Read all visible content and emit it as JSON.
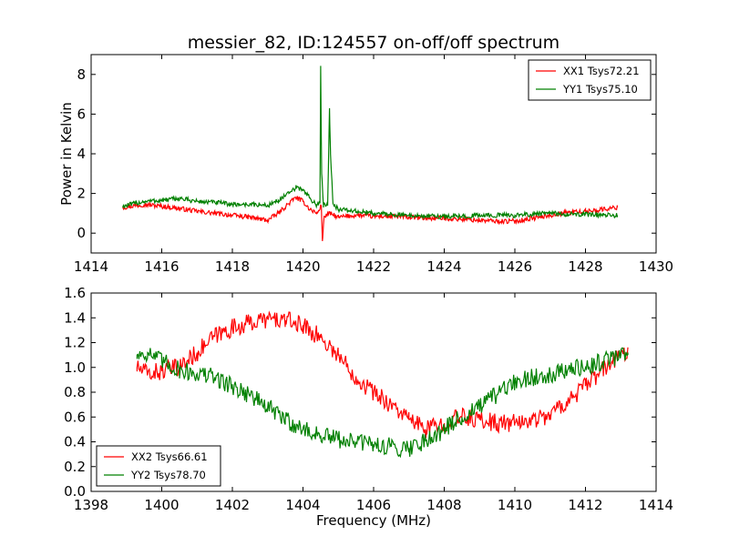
{
  "figure": {
    "title": "messier_82, ID:124557 on-off/off spectrum"
  },
  "chart_data": [
    {
      "type": "line",
      "title": "messier_82, ID:124557 on-off/off spectrum",
      "xlabel": "",
      "ylabel": "Power in Kelvin",
      "xlim": [
        1414,
        1430
      ],
      "ylim": [
        -1,
        9
      ],
      "xticks": [
        "1414",
        "1416",
        "1418",
        "1420",
        "1422",
        "1424",
        "1426",
        "1428",
        "1430"
      ],
      "yticks": [
        "0",
        "2",
        "4",
        "6",
        "8"
      ],
      "grid": false,
      "legend_position": "top-right",
      "colors": {
        "XX1 Tsys72.21": "#ff0000",
        "YY1 Tsys75.10": "#008000"
      },
      "series": [
        {
          "name": "XX1 Tsys72.21",
          "x": [
            1414.9,
            1415.5,
            1416.0,
            1416.5,
            1417.0,
            1417.5,
            1418.0,
            1418.5,
            1419.0,
            1419.3,
            1419.6,
            1419.8,
            1420.0,
            1420.2,
            1420.4,
            1420.52,
            1420.55,
            1420.6,
            1420.75,
            1421.0,
            1421.5,
            1422.0,
            1422.5,
            1423.0,
            1423.5,
            1424.0,
            1424.5,
            1425.0,
            1425.5,
            1426.0,
            1426.5,
            1427.0,
            1427.5,
            1428.0,
            1428.5,
            1428.9
          ],
          "y": [
            1.3,
            1.45,
            1.35,
            1.25,
            1.1,
            1.0,
            0.9,
            0.8,
            0.65,
            1.0,
            1.5,
            1.8,
            1.6,
            1.2,
            1.0,
            1.4,
            -0.4,
            0.85,
            1.0,
            0.8,
            0.9,
            0.85,
            0.85,
            0.8,
            0.75,
            0.75,
            0.7,
            0.65,
            0.6,
            0.6,
            0.75,
            0.9,
            1.05,
            1.1,
            1.2,
            1.3
          ]
        },
        {
          "name": "YY1 Tsys75.10",
          "x": [
            1414.9,
            1415.5,
            1416.0,
            1416.5,
            1417.0,
            1417.5,
            1418.0,
            1418.5,
            1419.0,
            1419.3,
            1419.6,
            1419.8,
            1420.0,
            1420.2,
            1420.4,
            1420.48,
            1420.5,
            1420.53,
            1420.58,
            1420.7,
            1420.75,
            1420.78,
            1420.85,
            1421.0,
            1421.5,
            1422.0,
            1422.5,
            1423.0,
            1423.5,
            1424.0,
            1424.5,
            1425.0,
            1425.5,
            1426.0,
            1426.5,
            1427.0,
            1427.5,
            1428.0,
            1428.5,
            1428.9
          ],
          "y": [
            1.35,
            1.6,
            1.65,
            1.75,
            1.6,
            1.55,
            1.45,
            1.45,
            1.4,
            1.65,
            2.0,
            2.3,
            2.2,
            1.75,
            1.4,
            1.5,
            8.4,
            3.0,
            1.4,
            1.5,
            6.3,
            4.0,
            1.5,
            1.2,
            1.1,
            1.0,
            0.95,
            0.9,
            0.85,
            0.85,
            0.85,
            0.9,
            0.9,
            0.9,
            0.95,
            1.0,
            0.95,
            0.95,
            0.9,
            0.9
          ]
        }
      ]
    },
    {
      "type": "line",
      "title": "",
      "xlabel": "Frequency (MHz)",
      "ylabel": "",
      "xlim": [
        1398,
        1414
      ],
      "ylim": [
        0.0,
        1.6
      ],
      "xticks": [
        "1398",
        "1400",
        "1402",
        "1404",
        "1406",
        "1408",
        "1410",
        "1412",
        "1414"
      ],
      "yticks": [
        "0.0",
        "0.2",
        "0.4",
        "0.6",
        "0.8",
        "1.0",
        "1.2",
        "1.4",
        "1.6"
      ],
      "grid": false,
      "legend_position": "bottom-left",
      "colors": {
        "XX2 Tsys66.61": "#ff0000",
        "YY2 Tsys78.70": "#008000"
      },
      "series": [
        {
          "name": "XX2 Tsys66.61",
          "x": [
            1399.3,
            1399.6,
            1400.0,
            1400.5,
            1401.0,
            1401.5,
            1402.0,
            1402.5,
            1403.0,
            1403.5,
            1404.0,
            1404.5,
            1405.0,
            1405.5,
            1406.0,
            1406.5,
            1407.0,
            1407.5,
            1408.0,
            1408.5,
            1409.0,
            1409.5,
            1410.0,
            1410.5,
            1411.0,
            1411.5,
            1412.0,
            1412.5,
            1413.0,
            1413.2
          ],
          "y": [
            1.0,
            0.95,
            0.97,
            1.0,
            1.12,
            1.25,
            1.32,
            1.36,
            1.39,
            1.38,
            1.34,
            1.24,
            1.1,
            0.92,
            0.8,
            0.7,
            0.58,
            0.5,
            0.55,
            0.6,
            0.58,
            0.55,
            0.55,
            0.58,
            0.62,
            0.73,
            0.85,
            0.98,
            1.1,
            1.15
          ]
        },
        {
          "name": "YY2 Tsys78.70",
          "x": [
            1399.3,
            1399.6,
            1400.0,
            1400.5,
            1401.0,
            1401.5,
            1402.0,
            1402.5,
            1403.0,
            1403.5,
            1404.0,
            1404.5,
            1405.0,
            1405.5,
            1406.0,
            1406.5,
            1407.0,
            1407.5,
            1408.0,
            1408.5,
            1409.0,
            1409.5,
            1410.0,
            1410.5,
            1411.0,
            1411.5,
            1412.0,
            1412.5,
            1413.0,
            1413.2
          ],
          "y": [
            1.1,
            1.12,
            1.05,
            0.98,
            0.95,
            0.92,
            0.85,
            0.78,
            0.68,
            0.58,
            0.5,
            0.45,
            0.42,
            0.4,
            0.38,
            0.36,
            0.35,
            0.42,
            0.5,
            0.6,
            0.68,
            0.78,
            0.88,
            0.92,
            0.95,
            0.98,
            1.0,
            1.05,
            1.1,
            1.12
          ]
        }
      ]
    }
  ]
}
